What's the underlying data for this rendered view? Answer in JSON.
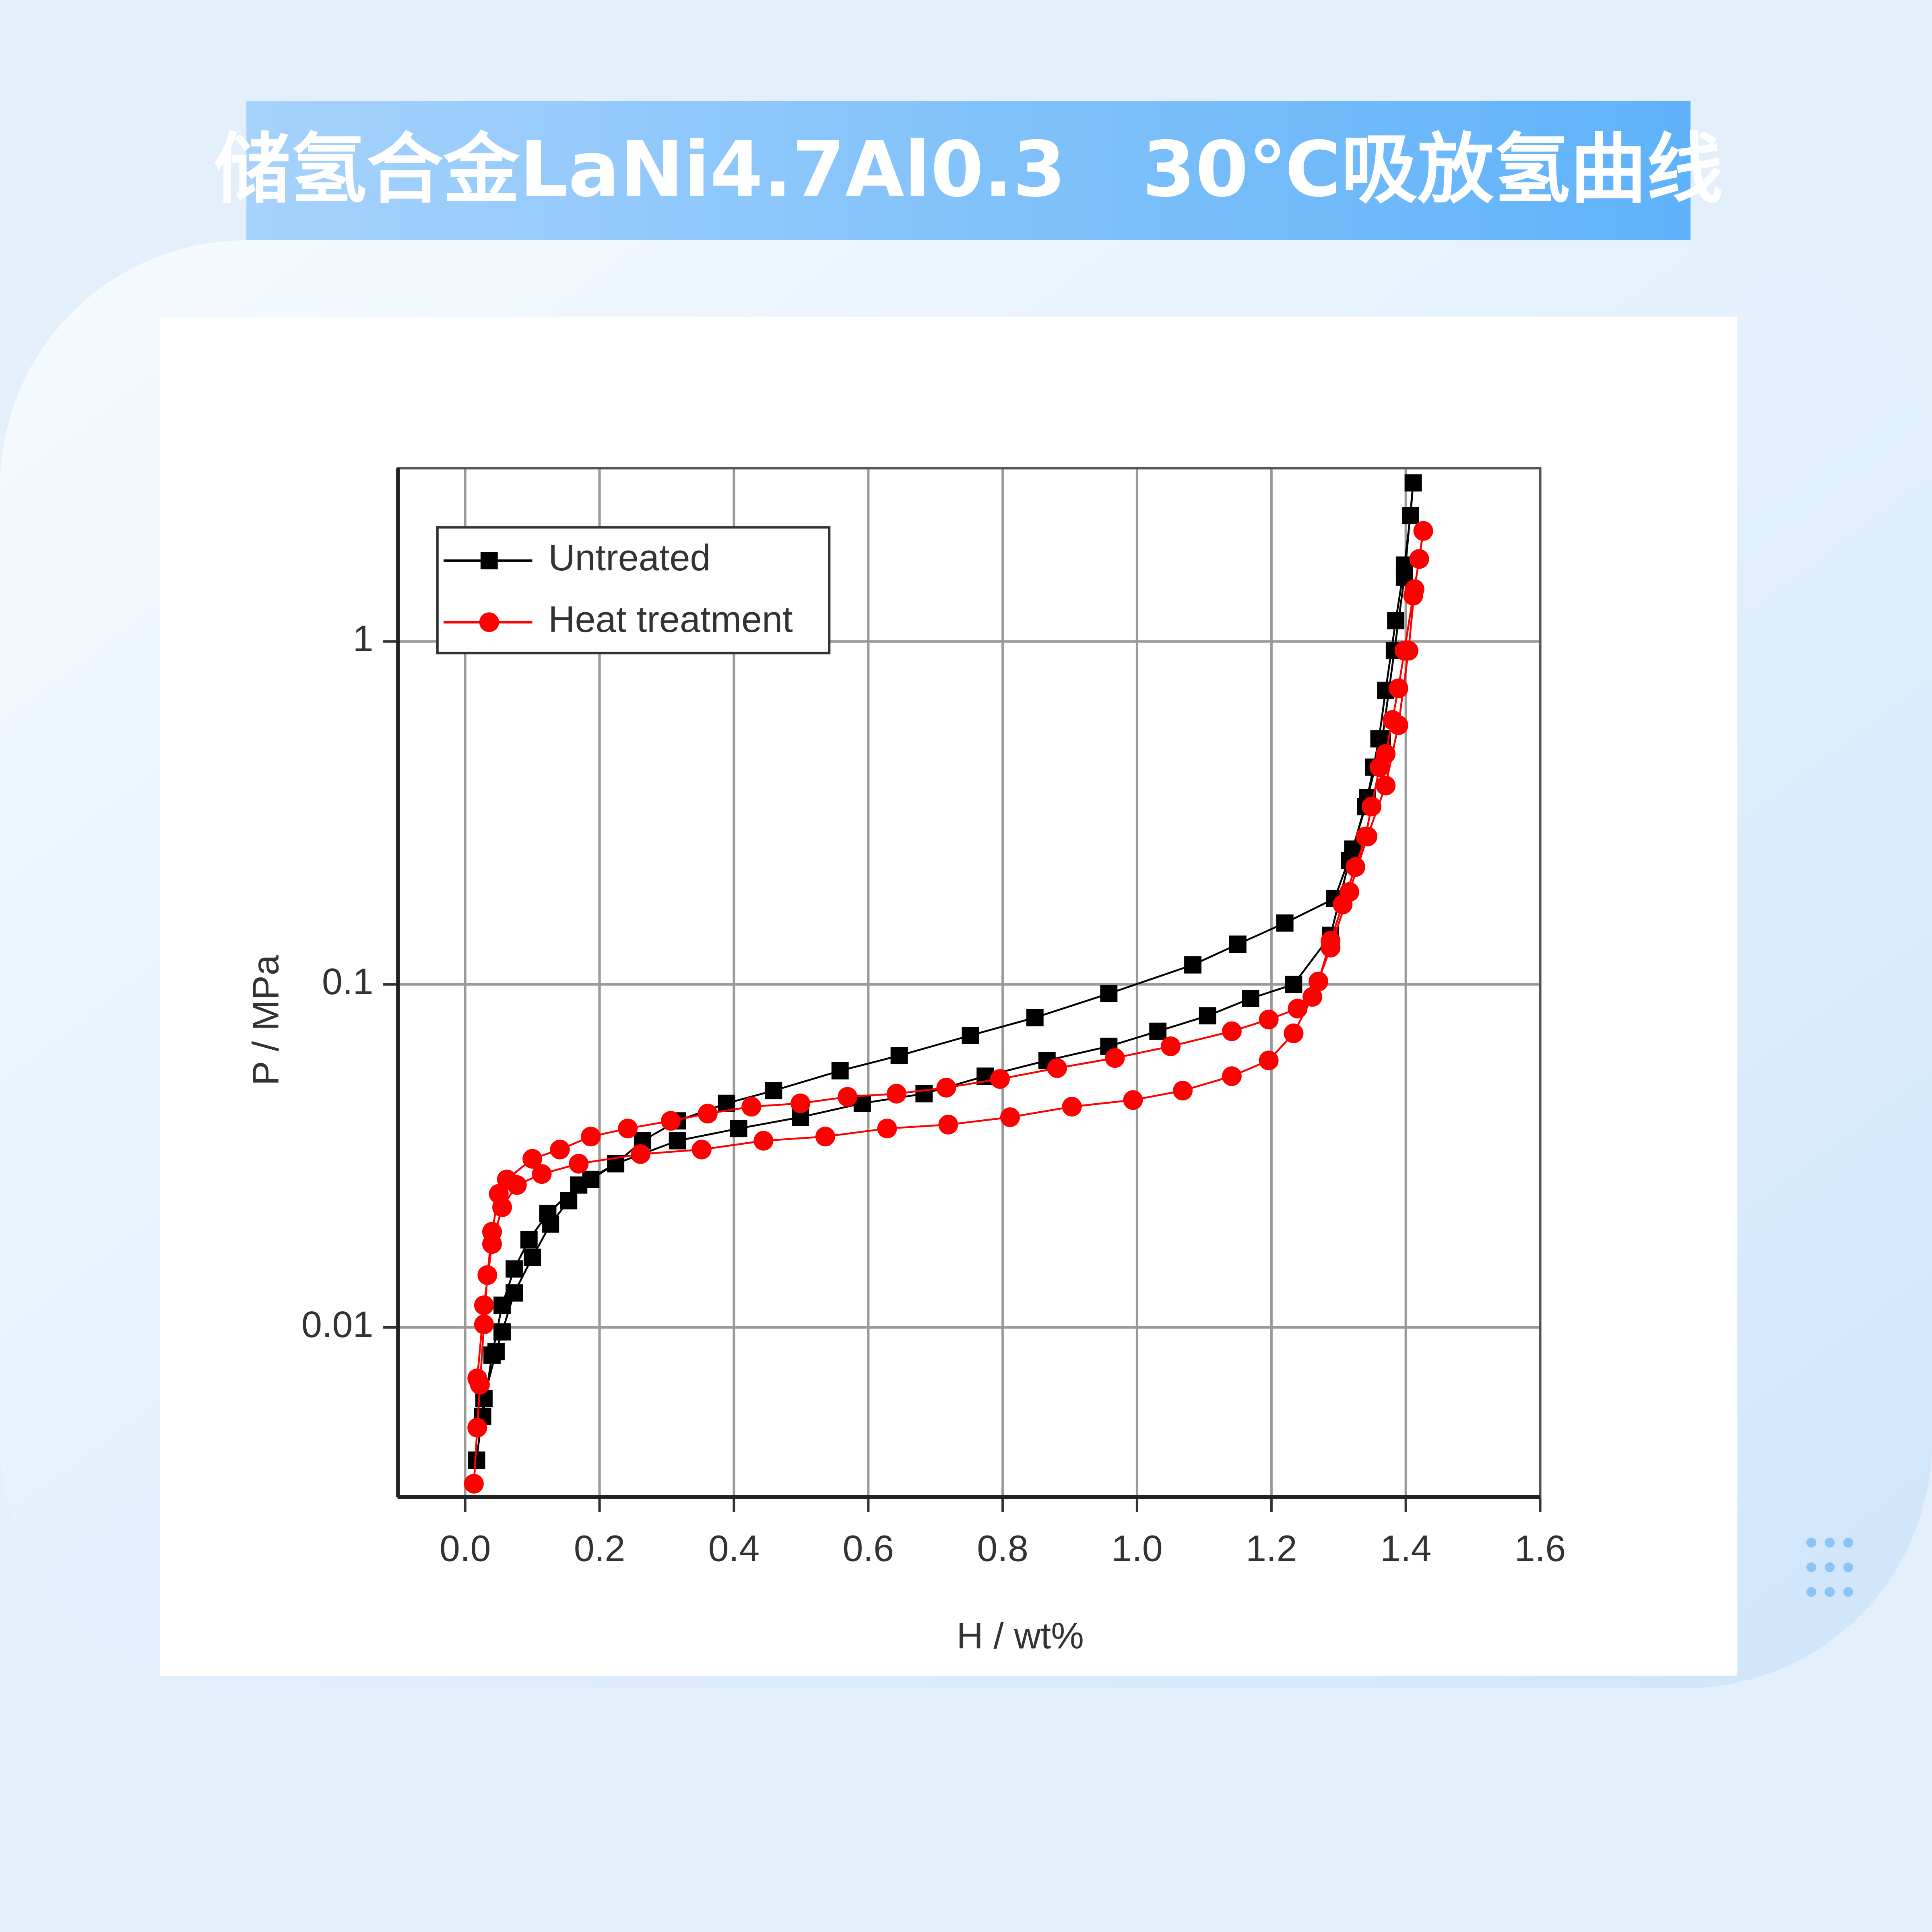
{
  "chart_data": {
    "type": "line",
    "title": "储氢合金LaNi4.7Al0.3　30℃吸放氢曲线",
    "x_label": "H / wt%",
    "y_label": "P / MPa",
    "xlim": [
      -0.1,
      1.6
    ],
    "ylim": [
      0.0032,
      3.2
    ],
    "ylog": true,
    "grid": true,
    "legend": "upper left",
    "xticks": [
      {
        "value": 0,
        "label": "0.0"
      },
      0.2,
      0.4,
      0.6,
      0.8,
      {
        "value": 1,
        "label": "1.0"
      },
      1.2,
      1.4,
      1.6
    ],
    "yticks": [
      0.01,
      0.1,
      1
    ],
    "series": [
      {
        "name": "Untreated",
        "color": "#000000",
        "marker": "square",
        "x": [
          0.017,
          0.028,
          0.046,
          0.055,
          0.073,
          0.1,
          0.127,
          0.154,
          0.187,
          0.224,
          0.264,
          0.316,
          0.389,
          0.459,
          0.558,
          0.646,
          0.752,
          0.848,
          0.958,
          1.083,
          1.15,
          1.22,
          1.294,
          1.321,
          1.34,
          1.352,
          1.36,
          1.37,
          1.385,
          1.398,
          1.407,
          1.411,
          1.398,
          1.383,
          1.365,
          1.343,
          1.316,
          1.288,
          1.233,
          1.169,
          1.105,
          1.031,
          0.958,
          0.866,
          0.774,
          0.683,
          0.591,
          0.499,
          0.407,
          0.316,
          0.224,
          0.169,
          0.123,
          0.095,
          0.073,
          0.055,
          0.04,
          0.026
        ],
        "values": [
          0.0041,
          0.0062,
          0.0085,
          0.0097,
          0.0126,
          0.016,
          0.02,
          0.0234,
          0.027,
          0.03,
          0.035,
          0.04,
          0.045,
          0.049,
          0.056,
          0.062,
          0.071,
          0.08,
          0.094,
          0.114,
          0.131,
          0.151,
          0.178,
          0.248,
          0.33,
          0.43,
          0.52,
          0.72,
          1.15,
          1.67,
          2.33,
          2.9,
          1.54,
          0.94,
          0.52,
          0.35,
          0.23,
          0.139,
          0.1,
          0.091,
          0.081,
          0.073,
          0.066,
          0.06,
          0.054,
          0.048,
          0.045,
          0.041,
          0.038,
          0.035,
          0.03,
          0.026,
          0.0215,
          0.018,
          0.0148,
          0.0116,
          0.0083,
          0.0055
        ]
      },
      {
        "name": "Heat treatment",
        "color": "#ff0000",
        "marker": "circle",
        "x": [
          0.013,
          0.018,
          0.022,
          0.028,
          0.033,
          0.04,
          0.05,
          0.062,
          0.1,
          0.141,
          0.187,
          0.242,
          0.306,
          0.361,
          0.426,
          0.499,
          0.569,
          0.642,
          0.716,
          0.796,
          0.881,
          0.967,
          1.05,
          1.141,
          1.196,
          1.239,
          1.27,
          1.288,
          1.306,
          1.325,
          1.34,
          1.349,
          1.361,
          1.37,
          1.38,
          1.389,
          1.398,
          1.411,
          1.42,
          1.426,
          1.413,
          1.404,
          1.389,
          1.37,
          1.343,
          1.316,
          1.288,
          1.261,
          1.233,
          1.196,
          1.141,
          1.068,
          0.994,
          0.903,
          0.811,
          0.719,
          0.628,
          0.536,
          0.444,
          0.352,
          0.261,
          0.169,
          0.114,
          0.077,
          0.055,
          0.04,
          0.028,
          0.018
        ],
        "values": [
          0.0035,
          0.0051,
          0.0068,
          0.0102,
          0.0142,
          0.019,
          0.0245,
          0.027,
          0.031,
          0.033,
          0.036,
          0.038,
          0.04,
          0.042,
          0.044,
          0.045,
          0.047,
          0.048,
          0.05,
          0.053,
          0.057,
          0.061,
          0.066,
          0.073,
          0.079,
          0.085,
          0.102,
          0.134,
          0.171,
          0.22,
          0.27,
          0.33,
          0.43,
          0.47,
          0.59,
          0.73,
          0.94,
          1.36,
          1.74,
          2.1,
          1.42,
          0.94,
          0.57,
          0.38,
          0.27,
          0.186,
          0.128,
          0.092,
          0.072,
          0.06,
          0.054,
          0.049,
          0.046,
          0.044,
          0.041,
          0.039,
          0.038,
          0.036,
          0.035,
          0.033,
          0.032,
          0.03,
          0.028,
          0.026,
          0.0224,
          0.0175,
          0.0116,
          0.0071
        ]
      }
    ]
  }
}
